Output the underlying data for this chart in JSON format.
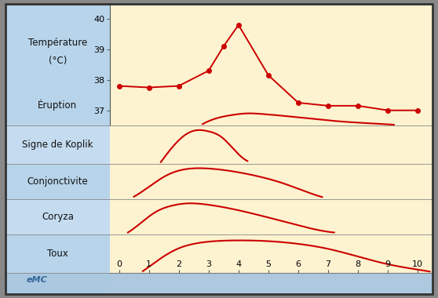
{
  "x_ticks": [
    0,
    1,
    2,
    3,
    4,
    5,
    6,
    7,
    8,
    9,
    10
  ],
  "temp_x": [
    0,
    1,
    2,
    3,
    3.5,
    4,
    5,
    6,
    7,
    8,
    9,
    10
  ],
  "temp_y": [
    37.8,
    37.75,
    37.8,
    38.3,
    39.1,
    39.8,
    38.15,
    37.25,
    37.15,
    37.15,
    37.0,
    37.0
  ],
  "temp_ylim": [
    36.5,
    40.5
  ],
  "temp_yticks": [
    37,
    38,
    39,
    40
  ],
  "line_color": "#cc0000",
  "left_bg_top": "#b8d4ea",
  "left_bg_alt": "#c8ddf0",
  "right_bg": "#fdf3d0",
  "xaxis_bg": "#aec9e0",
  "label_fontsize": 8.5,
  "tick_fontsize": 8,
  "emc_label": "eMC",
  "emc_color": "#336699",
  "row_labels": [
    "Température\n(°C)\n\nÉruption",
    "Signe de Koplik",
    "Conjonctivite",
    "Coryza",
    "Toux"
  ],
  "border_color": "#333333"
}
